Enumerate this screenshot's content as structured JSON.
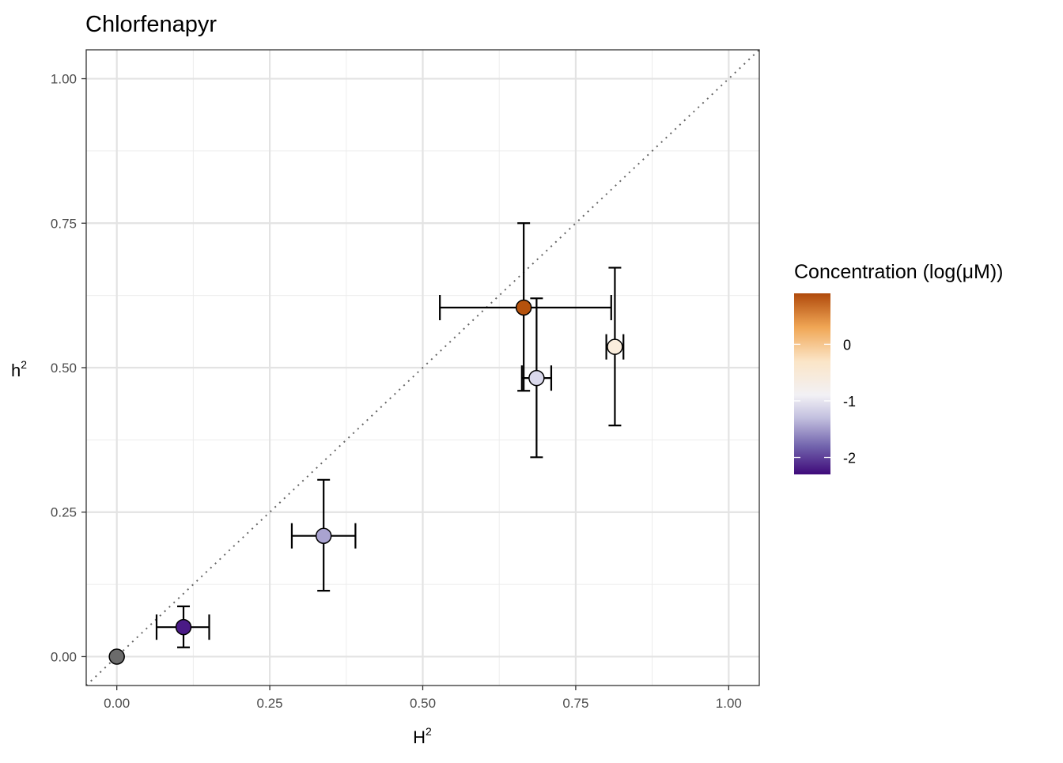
{
  "chart_data": {
    "type": "scatter",
    "title": "Chlorfenapyr",
    "xlabel": {
      "base": "H",
      "superscript": "2"
    },
    "ylabel": {
      "base": "h",
      "superscript": "2"
    },
    "xlim": [
      -0.05,
      1.05
    ],
    "ylim": [
      -0.05,
      1.05
    ],
    "x_ticks": [
      0,
      0.25,
      0.5,
      0.75,
      1
    ],
    "x_tick_labels": [
      "0.00",
      "0.25",
      "0.50",
      "0.75",
      "1.00"
    ],
    "y_ticks": [
      0,
      0.25,
      0.5,
      0.75,
      1
    ],
    "y_tick_labels": [
      "0.00",
      "0.25",
      "0.50",
      "0.75",
      "1.00"
    ],
    "grid": true,
    "reference_line": {
      "style": "dotted",
      "slope": 1,
      "intercept": 0,
      "color": "#666666"
    },
    "points": [
      {
        "x": 0.0,
        "y": 0.0,
        "xerr": null,
        "yerr": null,
        "color": "#6b6b6b",
        "concentration": null
      },
      {
        "x": 0.109,
        "y": 0.051,
        "xerr": [
          0.065,
          0.151
        ],
        "yerr": [
          0.016,
          0.087
        ],
        "color": "#4a1a86",
        "concentration": -2.2
      },
      {
        "x": 0.338,
        "y": 0.209,
        "xerr": [
          0.286,
          0.39
        ],
        "yerr": [
          0.114,
          0.306
        ],
        "color": "#a9a3d0",
        "concentration": -1.6
      },
      {
        "x": 0.686,
        "y": 0.482,
        "xerr": [
          0.662,
          0.71
        ],
        "yerr": [
          0.345,
          0.62
        ],
        "color": "#dad9ec",
        "concentration": -1.1
      },
      {
        "x": 0.814,
        "y": 0.536,
        "xerr": [
          0.8,
          0.828
        ],
        "yerr": [
          0.4,
          0.673
        ],
        "color": "#fbeedd",
        "concentration": -0.3
      },
      {
        "x": 0.665,
        "y": 0.604,
        "xerr": [
          0.528,
          0.808
        ],
        "yerr": [
          0.46,
          0.75
        ],
        "color": "#b5520d",
        "concentration": 0.9
      }
    ],
    "legend": {
      "title": "Concentration (log(μM))",
      "placement": "right",
      "range": [
        -2.3,
        0.9
      ],
      "ticks": [
        0,
        -1,
        -2
      ],
      "tick_labels": [
        "0",
        "-1",
        "-2"
      ],
      "colors": [
        {
          "value": -2.3,
          "color": "#3f0a7a"
        },
        {
          "value": -1.8,
          "color": "#7264ad"
        },
        {
          "value": -1.3,
          "color": "#c3c0df"
        },
        {
          "value": -0.9,
          "color": "#f2f1f5"
        },
        {
          "value": -0.3,
          "color": "#fbe5c7"
        },
        {
          "value": 0.3,
          "color": "#f0a655"
        },
        {
          "value": 0.9,
          "color": "#b04a0c"
        }
      ]
    }
  }
}
